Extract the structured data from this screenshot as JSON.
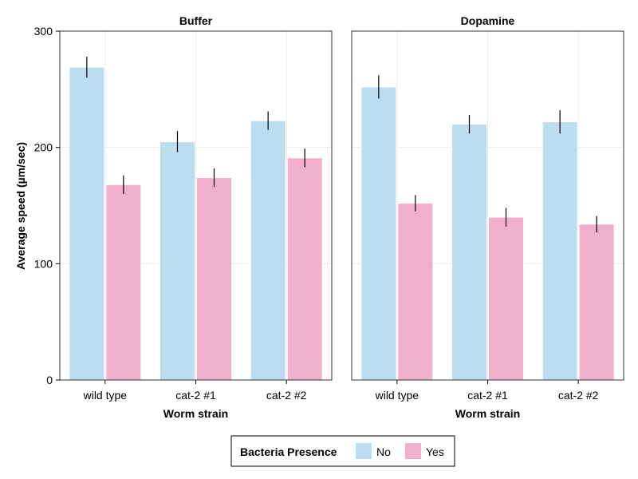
{
  "chart_data": {
    "type": "bar",
    "panels": [
      {
        "title": "Buffer",
        "categories": [
          "wild type",
          "cat-2 #1",
          "cat-2 #2"
        ],
        "series": [
          {
            "name": "No",
            "values": [
              269,
              205,
              223
            ],
            "errors": [
              9,
              9,
              8
            ]
          },
          {
            "name": "Yes",
            "values": [
              168,
              174,
              191
            ],
            "errors": [
              8,
              8,
              8
            ]
          }
        ]
      },
      {
        "title": "Dopamine",
        "categories": [
          "wild type",
          "cat-2 #1",
          "cat-2 #2"
        ],
        "series": [
          {
            "name": "No",
            "values": [
              252,
              220,
              222
            ],
            "errors": [
              10,
              8,
              10
            ]
          },
          {
            "name": "Yes",
            "values": [
              152,
              140,
              134
            ],
            "errors": [
              7,
              8,
              7
            ]
          }
        ]
      }
    ],
    "xlabel": "Worm strain",
    "ylabel": "Average speed (µm/sec)",
    "ylim": [
      0,
      300
    ],
    "yticks": [
      0,
      100,
      200,
      300
    ],
    "grid": true,
    "legend": {
      "title": "Bacteria Presence",
      "entries": [
        "No",
        "Yes"
      ],
      "placement": "bottom-center"
    },
    "colors": {
      "No": "#bcdcf0",
      "Yes": "#f0b0cc"
    }
  }
}
